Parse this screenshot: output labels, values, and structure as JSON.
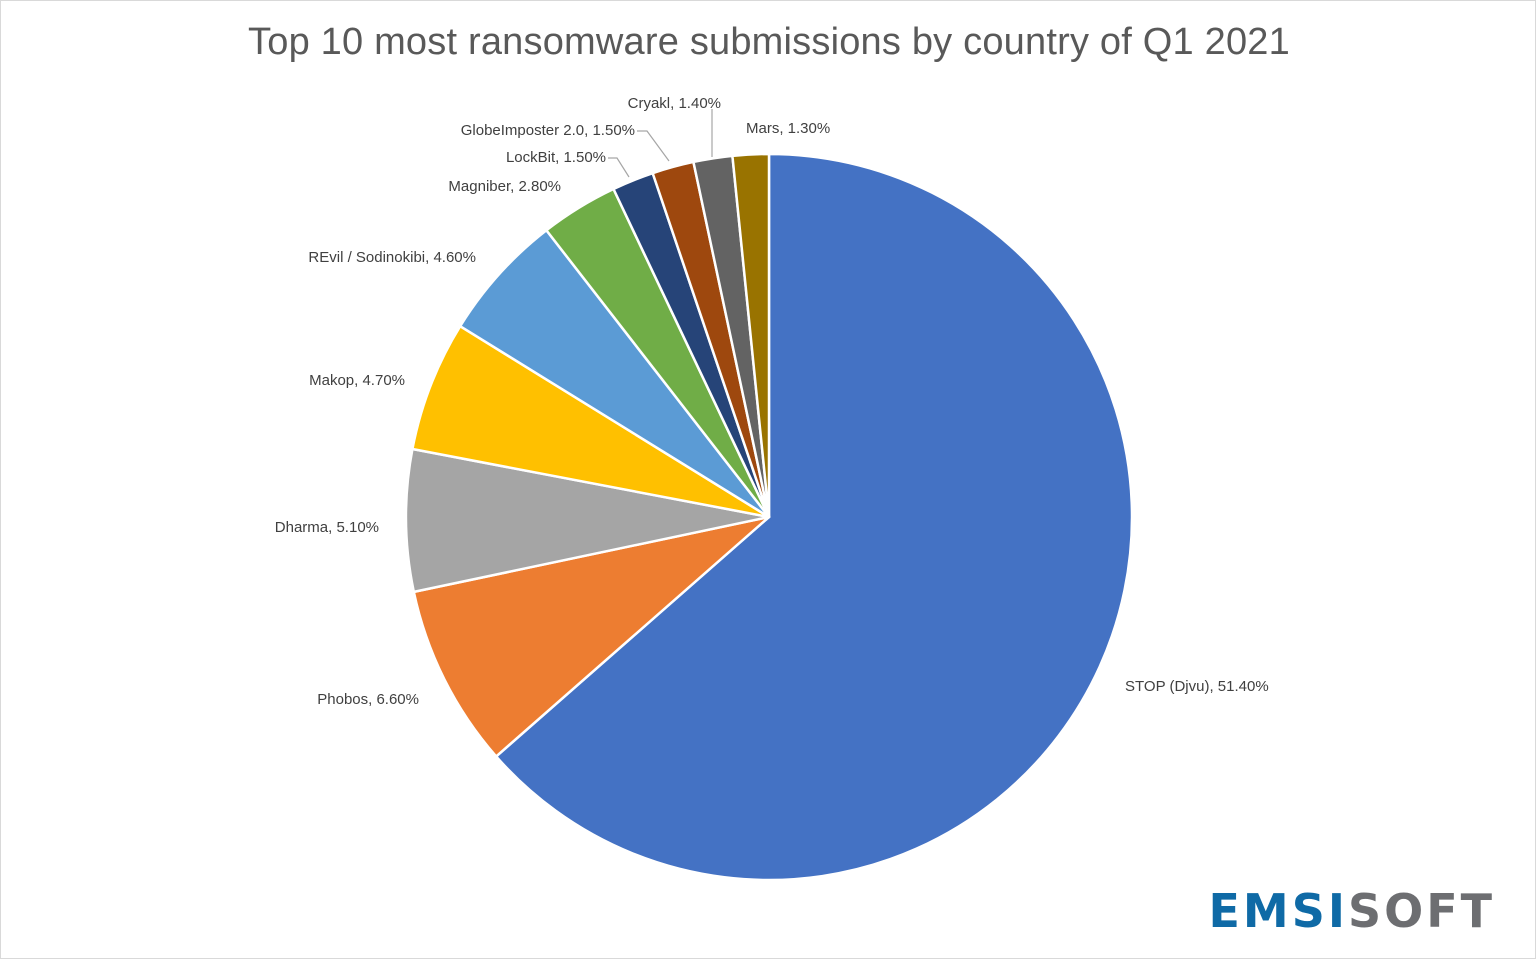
{
  "chart_data": {
    "type": "pie",
    "title": "Top 10 most ransomware submissions by country of Q1 2021",
    "slices": [
      {
        "name": "STOP (Djvu)",
        "value": 51.4,
        "label": "STOP (Djvu), 51.40%",
        "color": "#4472C4"
      },
      {
        "name": "Phobos",
        "value": 6.6,
        "label": "Phobos, 6.60%",
        "color": "#ED7D31"
      },
      {
        "name": "Dharma",
        "value": 5.1,
        "label": "Dharma, 5.10%",
        "color": "#A5A5A5"
      },
      {
        "name": "Makop",
        "value": 4.7,
        "label": "Makop, 4.70%",
        "color": "#FFC000"
      },
      {
        "name": "REvil / Sodinokibi",
        "value": 4.6,
        "label": "REvil / Sodinokibi, 4.60%",
        "color": "#5B9BD5"
      },
      {
        "name": "Magniber",
        "value": 2.8,
        "label": "Magniber, 2.80%",
        "color": "#70AD47"
      },
      {
        "name": "LockBit",
        "value": 1.5,
        "label": "LockBit, 1.50%",
        "color": "#264478"
      },
      {
        "name": "GlobeImposter 2.0",
        "value": 1.5,
        "label": "GlobeImposter 2.0, 1.50%",
        "color": "#9E480E"
      },
      {
        "name": "Cryakl",
        "value": 1.4,
        "label": "Cryakl, 1.40%",
        "color": "#636363"
      },
      {
        "name": "Mars",
        "value": 1.3,
        "label": "Mars, 1.30%",
        "color": "#997300"
      }
    ],
    "legend": "none",
    "data_labels": "outside"
  },
  "logo": {
    "part_a": "EMSI",
    "part_b": "SOFT",
    "color_a": "#0f6aa6",
    "color_b": "#6d6e71"
  }
}
